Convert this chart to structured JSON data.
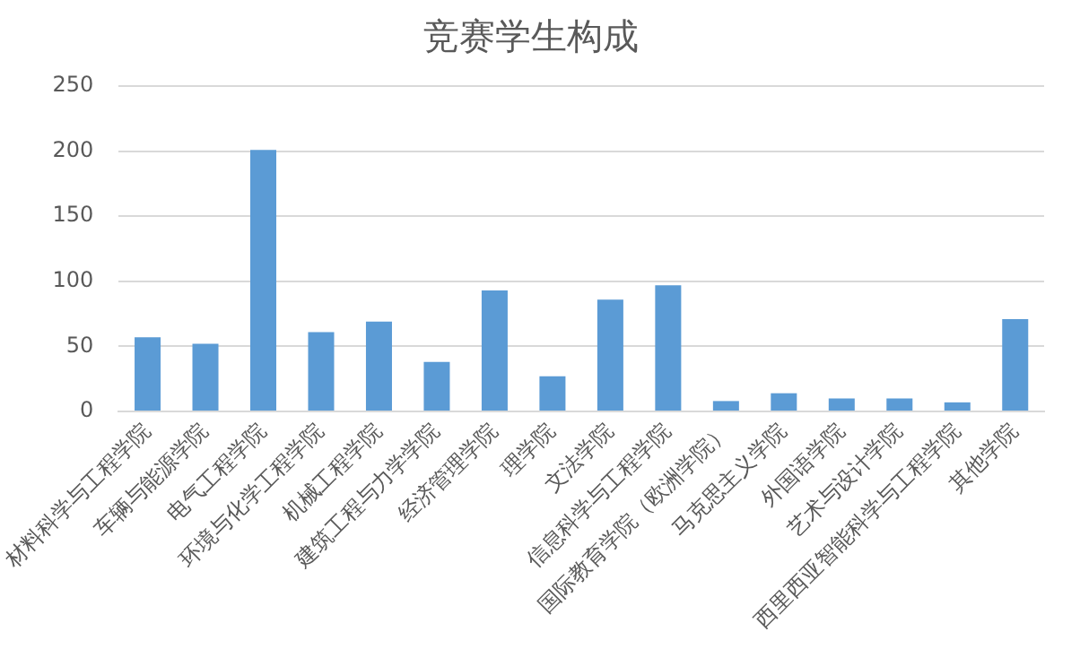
{
  "chart_data": {
    "type": "bar",
    "title": "竞赛学生构成",
    "categories": [
      "材料科学与工程学院",
      "车辆与能源学院",
      "电气工程学院",
      "环境与化学工程学院",
      "机械工程学院",
      "建筑工程与力学学院",
      "经济管理学院",
      "理学院",
      "文法学院",
      "信息科学与工程学院",
      "国际教育学院（欧洲学院）",
      "马克思主义学院",
      "外国语学院",
      "艺术与设计学院",
      "西里西亚智能科学与工程学院",
      "其他学院"
    ],
    "values": [
      57,
      52,
      201,
      61,
      69,
      38,
      93,
      27,
      86,
      97,
      8,
      14,
      10,
      10,
      7,
      71
    ],
    "color": "#5b9bd5",
    "ylim": [
      0,
      250
    ],
    "yticks": [
      0,
      50,
      100,
      150,
      200,
      250
    ],
    "grid": "y"
  }
}
